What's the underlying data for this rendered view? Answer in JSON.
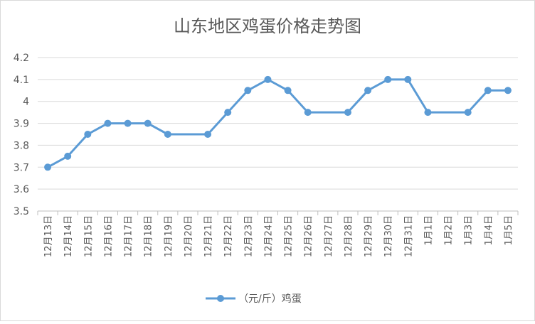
{
  "chart_data": {
    "type": "line",
    "title": "山东地区鸡蛋价格走势图",
    "xlabel": "",
    "ylabel": "",
    "ylim": [
      3.5,
      4.2
    ],
    "yticks": [
      "3.5",
      "3.6",
      "3.7",
      "3.8",
      "3.9",
      "4",
      "4.1",
      "4.2"
    ],
    "categories": [
      "12月13日",
      "12月14日",
      "12月15日",
      "12月16日",
      "12月17日",
      "12月18日",
      "12月19日",
      "12月20日",
      "12月21日",
      "12月22日",
      "12月23日",
      "12月24日",
      "12月25日",
      "12月26日",
      "12月27日",
      "12月28日",
      "12月29日",
      "12月30日",
      "12月31日",
      "1月1日",
      "1月2日",
      "1月3日",
      "1月4日",
      "1月5日"
    ],
    "series": [
      {
        "name": "（元/斤）鸡蛋",
        "color": "#5b9bd5",
        "values": [
          3.7,
          3.75,
          3.85,
          3.9,
          3.9,
          3.9,
          3.85,
          null,
          3.85,
          3.95,
          4.05,
          4.1,
          4.05,
          3.95,
          null,
          3.95,
          4.05,
          4.1,
          4.1,
          3.95,
          null,
          3.95,
          4.05,
          4.05
        ]
      }
    ],
    "grid": true,
    "legend_position": "bottom"
  }
}
